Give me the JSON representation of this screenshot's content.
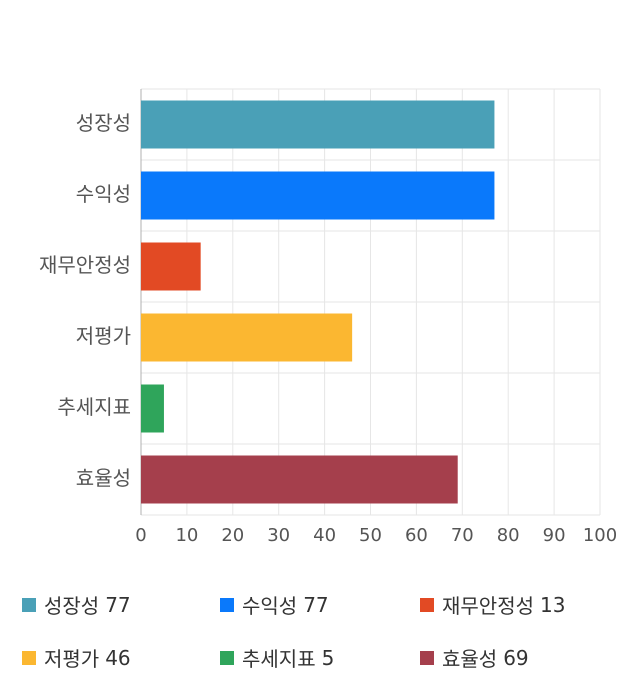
{
  "chart_data": {
    "type": "bar",
    "orientation": "horizontal",
    "categories": [
      "성장성",
      "수익성",
      "재무안정성",
      "저평가",
      "추세지표",
      "효율성"
    ],
    "values": [
      77,
      77,
      13,
      46,
      5,
      69
    ],
    "colors": [
      "#4aa0b7",
      "#0a79fb",
      "#e24a24",
      "#fbb731",
      "#2fa55b",
      "#a53f4c"
    ],
    "xlim": [
      0,
      100
    ],
    "xticks": [
      0,
      10,
      20,
      30,
      40,
      50,
      60,
      70,
      80,
      90,
      100
    ],
    "grid": true,
    "legend_position": "bottom"
  },
  "legend": [
    {
      "label": "성장성",
      "value": "77"
    },
    {
      "label": "수익성",
      "value": "77"
    },
    {
      "label": "재무안정성",
      "value": "13"
    },
    {
      "label": "저평가",
      "value": "46"
    },
    {
      "label": "추세지표",
      "value": "5"
    },
    {
      "label": "효율성",
      "value": "69"
    }
  ]
}
